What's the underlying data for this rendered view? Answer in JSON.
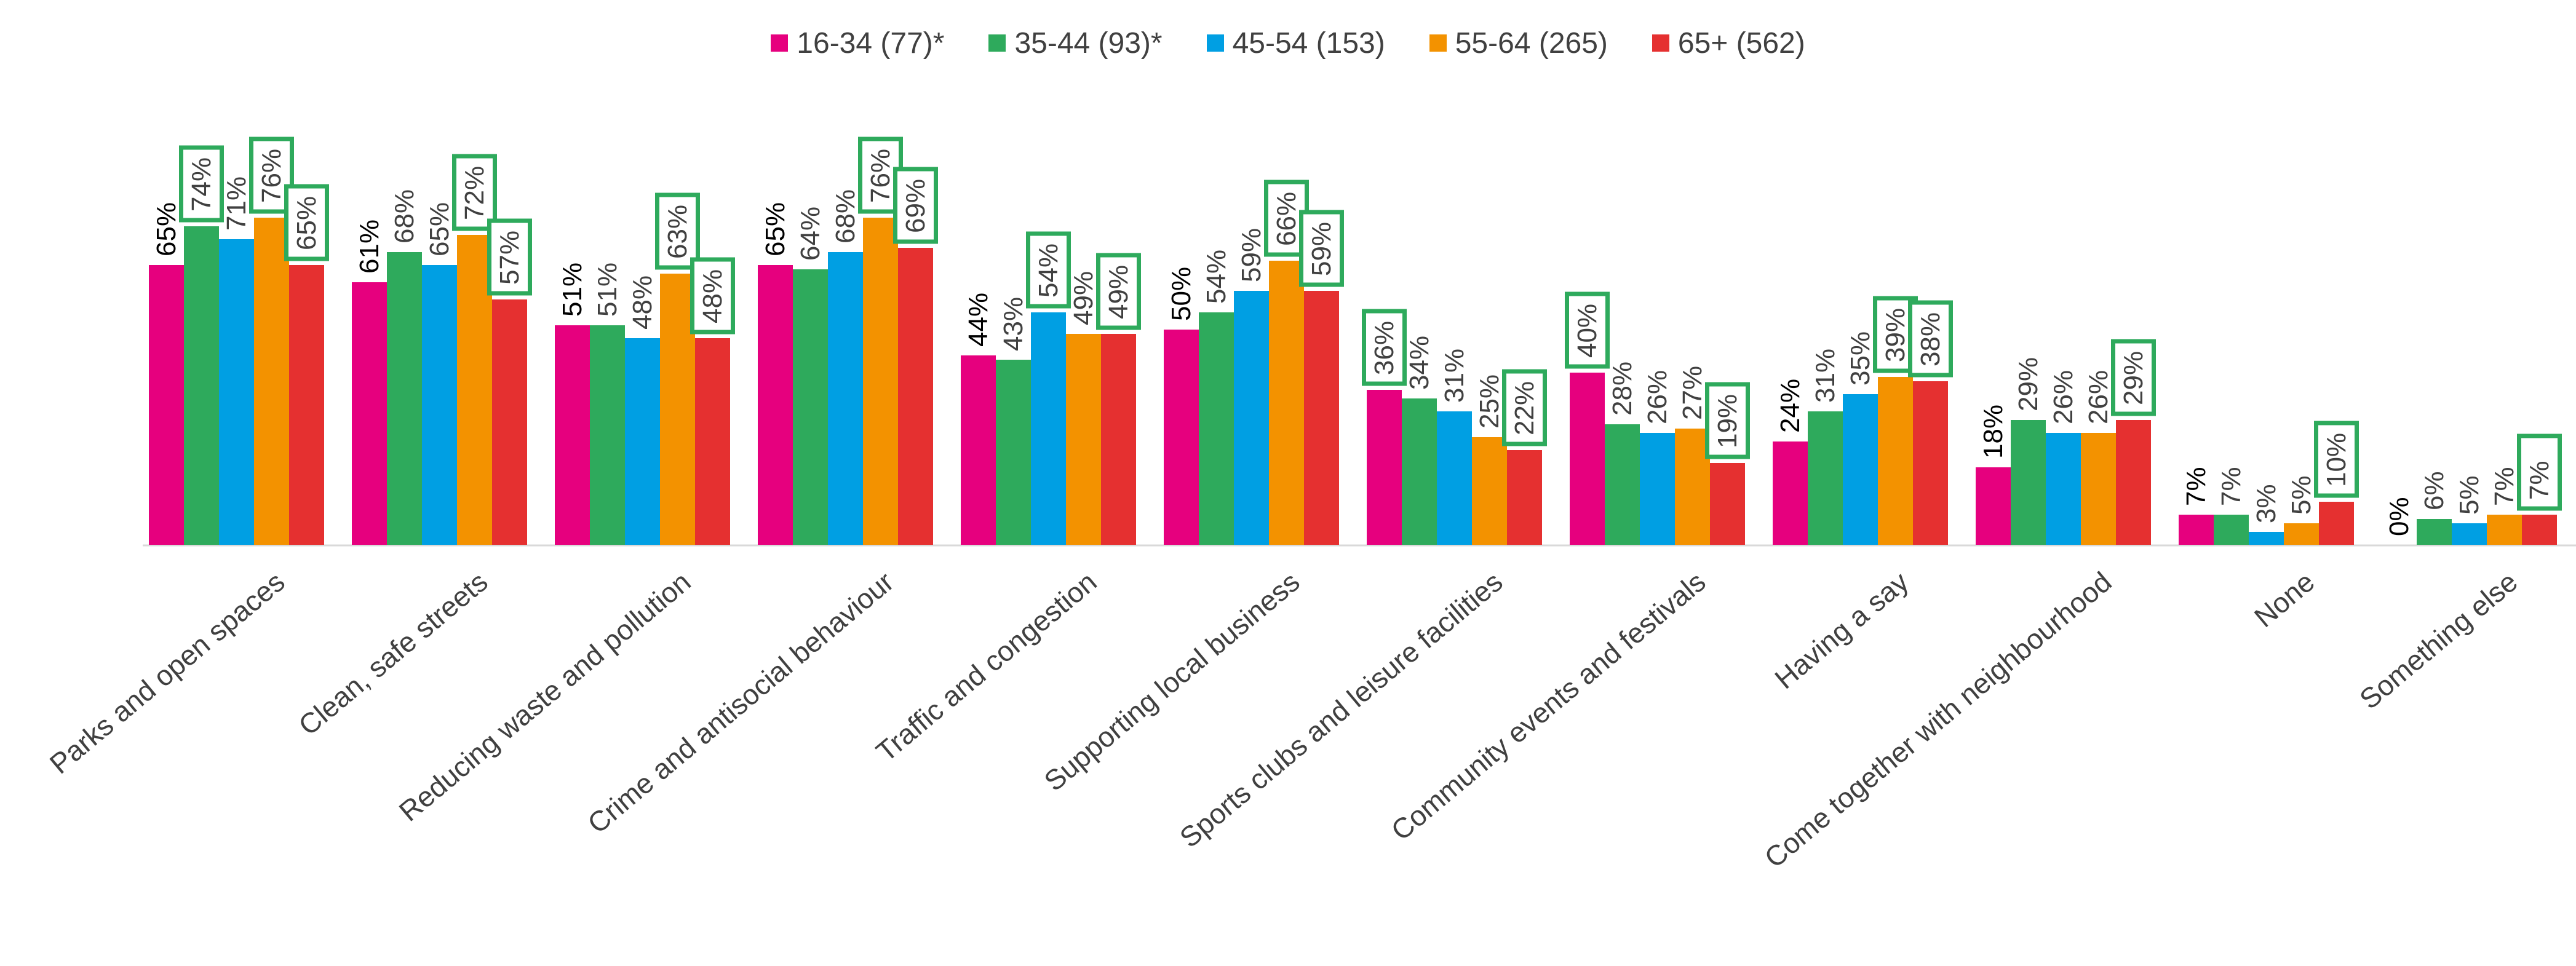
{
  "chart_data": {
    "type": "bar",
    "title": "",
    "xlabel": "",
    "ylabel": "",
    "ylim": [
      0,
      100
    ],
    "grid": false,
    "legend_position": "top-center",
    "categories": [
      "Parks and open spaces",
      "Clean, safe streets",
      "Reducing waste and pollution",
      "Crime and antisocial behaviour",
      "Traffic and congestion",
      "Supporting local business",
      "Sports clubs and leisure facilities",
      "Community events and festivals",
      "Having a say",
      "Come together with neighbourhood",
      "None",
      "Something else"
    ],
    "series": [
      {
        "name": "16-34 (77)*",
        "color": "#E6007E",
        "values": [
          65,
          61,
          51,
          65,
          44,
          50,
          36,
          40,
          24,
          18,
          7,
          0
        ],
        "highlighted": [
          false,
          false,
          false,
          false,
          false,
          false,
          true,
          true,
          false,
          false,
          false,
          false
        ]
      },
      {
        "name": "35-44 (93)*",
        "color": "#2EAA5C",
        "values": [
          74,
          68,
          51,
          64,
          43,
          54,
          34,
          28,
          31,
          29,
          7,
          6
        ],
        "highlighted": [
          true,
          false,
          false,
          false,
          false,
          false,
          false,
          false,
          false,
          false,
          false,
          false
        ]
      },
      {
        "name": "45-54 (153)",
        "color": "#009FE3",
        "values": [
          71,
          65,
          48,
          68,
          54,
          59,
          31,
          26,
          35,
          26,
          3,
          5
        ],
        "highlighted": [
          false,
          false,
          false,
          false,
          true,
          false,
          false,
          false,
          false,
          false,
          false,
          false
        ]
      },
      {
        "name": "55-64 (265)",
        "color": "#F39200",
        "values": [
          76,
          72,
          63,
          76,
          49,
          66,
          25,
          27,
          39,
          26,
          5,
          7
        ],
        "highlighted": [
          true,
          true,
          true,
          true,
          false,
          true,
          false,
          false,
          true,
          false,
          false,
          false
        ]
      },
      {
        "name": "65+ (562)",
        "color": "#E53030",
        "values": [
          65,
          57,
          48,
          69,
          49,
          59,
          22,
          19,
          38,
          29,
          10,
          7
        ],
        "highlighted": [
          true,
          true,
          true,
          true,
          true,
          true,
          true,
          true,
          true,
          true,
          true,
          true
        ]
      }
    ],
    "value_labels": [
      [
        "65%",
        "61%",
        "51%",
        "65%",
        "44%",
        "50%",
        "36%",
        "40%",
        "24%",
        "18%",
        "7%",
        "0%"
      ],
      [
        "74%",
        "68%",
        "51%",
        "64%",
        "43%",
        "54%",
        "34%",
        "28%",
        "31%",
        "29%",
        "7%",
        "6%"
      ],
      [
        "71%",
        "65%",
        "48%",
        "68%",
        "54%",
        "59%",
        "31%",
        "26%",
        "35%",
        "26%",
        "3%",
        "5%"
      ],
      [
        "76%",
        "72%",
        "63%",
        "76%",
        "49%",
        "66%",
        "25%",
        "27%",
        "39%",
        "26%",
        "5%",
        "7%"
      ],
      [
        "65%",
        "57%",
        "48%",
        "69%",
        "49%",
        "59%",
        "22%",
        "19%",
        "38%",
        "29%",
        "10%",
        "7%"
      ]
    ],
    "highlight_color": "#2EAA5C"
  }
}
